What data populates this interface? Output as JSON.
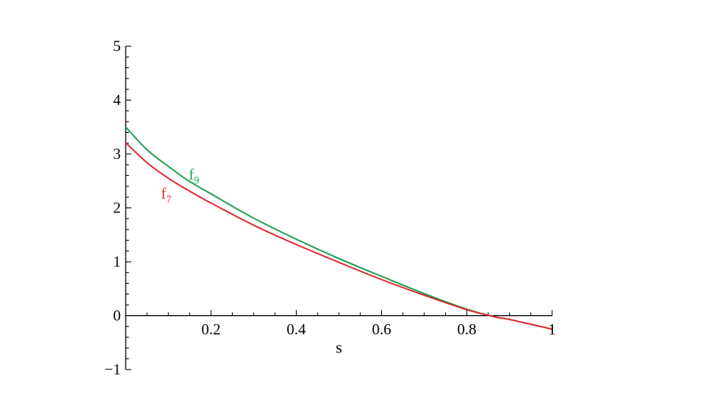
{
  "chart_data": {
    "type": "line",
    "title": "",
    "xlabel": "s",
    "ylabel": "",
    "xlim": [
      0,
      1
    ],
    "ylim": [
      -1,
      5
    ],
    "x_ticks": [
      {
        "value": 0.2,
        "label": "0.2"
      },
      {
        "value": 0.4,
        "label": "0.4"
      },
      {
        "value": 0.6,
        "label": "0.6"
      },
      {
        "value": 0.8,
        "label": "0.8"
      },
      {
        "value": 1.0,
        "label": "1"
      }
    ],
    "y_ticks": [
      {
        "value": -1,
        "label": "−1"
      },
      {
        "value": 0,
        "label": "0"
      },
      {
        "value": 1,
        "label": "1"
      },
      {
        "value": 2,
        "label": "2"
      },
      {
        "value": 3,
        "label": "3"
      },
      {
        "value": 4,
        "label": "4"
      },
      {
        "value": 5,
        "label": "5"
      }
    ],
    "grid": false,
    "series": [
      {
        "name": "f",
        "subscript": "9",
        "color": "#1a9c4e",
        "x": [
          0,
          0.05,
          0.1,
          0.15,
          0.2,
          0.3,
          0.4,
          0.5,
          0.6,
          0.7,
          0.8,
          0.87,
          0.9,
          1.0
        ],
        "y": [
          3.5,
          3.08,
          2.77,
          2.49,
          2.26,
          1.81,
          1.42,
          1.06,
          0.73,
          0.41,
          0.12,
          -0.03,
          -0.07,
          -0.25
        ]
      },
      {
        "name": "f",
        "subscript": "7",
        "color": "#e3242b",
        "x": [
          0,
          0.05,
          0.1,
          0.15,
          0.2,
          0.3,
          0.4,
          0.5,
          0.6,
          0.7,
          0.8,
          0.87,
          0.9,
          1.0
        ],
        "y": [
          3.21,
          2.84,
          2.55,
          2.31,
          2.09,
          1.68,
          1.32,
          0.99,
          0.67,
          0.38,
          0.11,
          -0.03,
          -0.07,
          -0.25
        ]
      }
    ]
  }
}
